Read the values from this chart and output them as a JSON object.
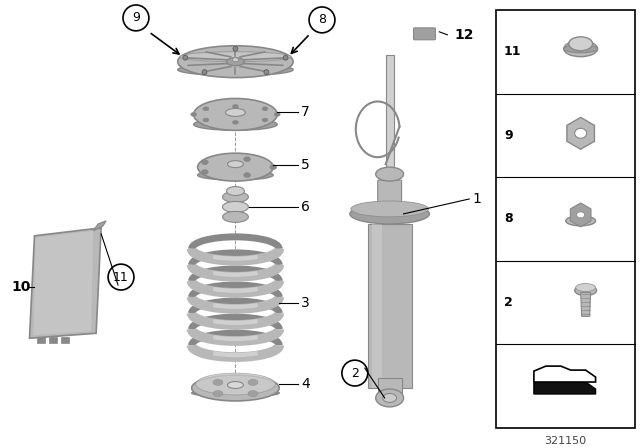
{
  "bg_color": "#ffffff",
  "diagram_number": "321150",
  "gray_main": "#b8b8b8",
  "gray_dark": "#888888",
  "gray_light": "#d0d0d0",
  "gray_mid": "#a0a0a0"
}
